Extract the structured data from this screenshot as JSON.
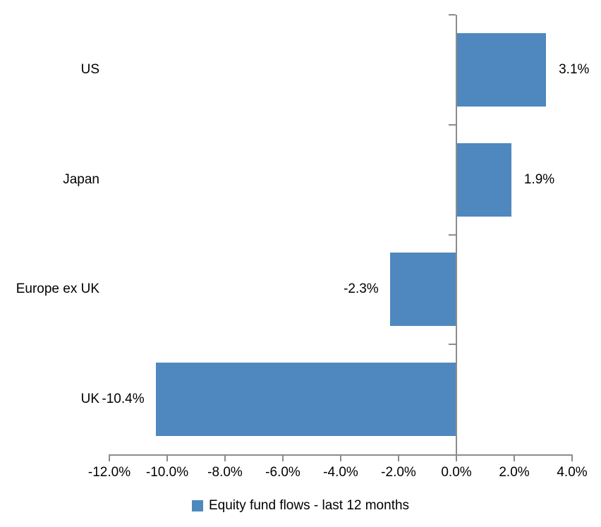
{
  "chart_data": {
    "type": "bar",
    "orientation": "horizontal",
    "title": "",
    "xlabel": "",
    "ylabel": "",
    "categories": [
      "US",
      "Japan",
      "Europe ex UK",
      "UK"
    ],
    "series": [
      {
        "name": "Equity fund flows - last 12 months",
        "values": [
          3.1,
          1.9,
          -2.3,
          -10.4
        ],
        "data_labels": [
          "3.1%",
          "1.9%",
          "-2.3%",
          "-10.4%"
        ],
        "color": "#4e88be"
      }
    ],
    "xlim": [
      -12,
      4
    ],
    "x_tick_values": [
      -12,
      -10,
      -8,
      -6,
      -4,
      -2,
      0,
      2,
      4
    ],
    "x_tick_labels": [
      "-12.0%",
      "-10.0%",
      "-8.0%",
      "-6.0%",
      "-4.0%",
      "-2.0%",
      "0.0%",
      "2.0%",
      "4.0%"
    ],
    "grid": false,
    "axis_color": "#8c8c8c",
    "text_color": "#000000",
    "legend": {
      "position": "bottom",
      "label": "Equity fund flows - last 12 months",
      "swatch_color": "#4e88be"
    }
  }
}
